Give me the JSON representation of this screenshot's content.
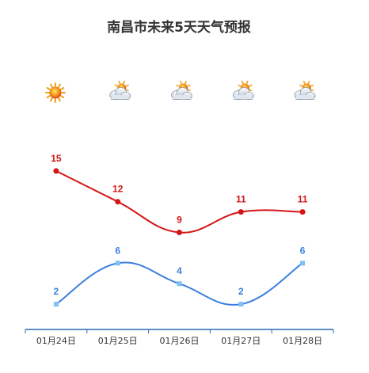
{
  "chart_data": {
    "type": "line",
    "title": "南昌市未来5天天气预报",
    "categories": [
      "01月24日",
      "01月25日",
      "01月26日",
      "01月27日",
      "01月28日"
    ],
    "weather_icons": [
      "sunny-icon",
      "partly-cloudy-icon",
      "partly-cloudy-icon",
      "partly-cloudy-icon",
      "partly-cloudy-icon"
    ],
    "series": [
      {
        "key": "high",
        "values": [
          15,
          12,
          9,
          11,
          11
        ],
        "color": "#d41515",
        "marker": "circle"
      },
      {
        "key": "low",
        "values": [
          2,
          6,
          4,
          2,
          6
        ],
        "color": "#3a7fe0",
        "marker": "square"
      }
    ],
    "xlabel": "",
    "ylabel": "",
    "ylim": [
      0,
      17
    ],
    "grid": false,
    "legend": "none",
    "axis_color": "#2a6cb4"
  }
}
